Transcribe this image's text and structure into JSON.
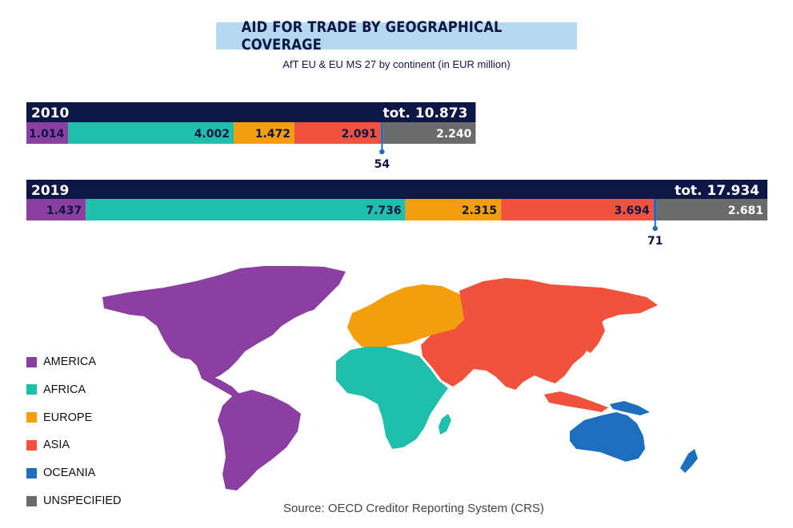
{
  "title": "AID FOR TRADE BY GEOGRAPHICAL COVERAGE",
  "subtitle": "AfT EU & EU MS 27 by continent (in EUR million)",
  "source": "Source: OECD Creditor Reporting System (CRS)",
  "colors": {
    "header": "#0e1645",
    "AMERICA": "#8b3fa0",
    "AFRICA": "#1fbfab",
    "EUROPE": "#f59e0b",
    "ASIA": "#f0523e",
    "OCEANIA": "#1e6ec0",
    "UNSPECIFIED": "#6b6b6b"
  },
  "legend": [
    {
      "label": "AMERICA",
      "color": "#8b3fa0"
    },
    {
      "label": "AFRICA",
      "color": "#1fbfab"
    },
    {
      "label": "EUROPE",
      "color": "#f59e0b"
    },
    {
      "label": "ASIA",
      "color": "#f0523e"
    },
    {
      "label": "OCEANIA",
      "color": "#1e6ec0"
    },
    {
      "label": "UNSPECIFIED",
      "color": "#6b6b6b"
    }
  ],
  "chart_data": {
    "type": "bar",
    "stacked": true,
    "orientation": "horizontal",
    "categories": [
      "AMERICA",
      "AFRICA",
      "EUROPE",
      "ASIA",
      "OCEANIA",
      "UNSPECIFIED"
    ],
    "series": [
      {
        "name": "2010",
        "total_label": "tot. 10.873",
        "total": 10873,
        "values": [
          1014,
          4002,
          1472,
          2091,
          54,
          2240
        ],
        "labels": [
          "1.014",
          "4.002",
          "1.472",
          "2.091",
          "54",
          "2.240"
        ]
      },
      {
        "name": "2019",
        "total_label": "tot. 17.934",
        "total": 17934,
        "values": [
          1437,
          7736,
          2315,
          3694,
          71,
          2681
        ],
        "labels": [
          "1.437",
          "7.736",
          "2.315",
          "3.694",
          "71",
          "2.681"
        ]
      }
    ]
  }
}
